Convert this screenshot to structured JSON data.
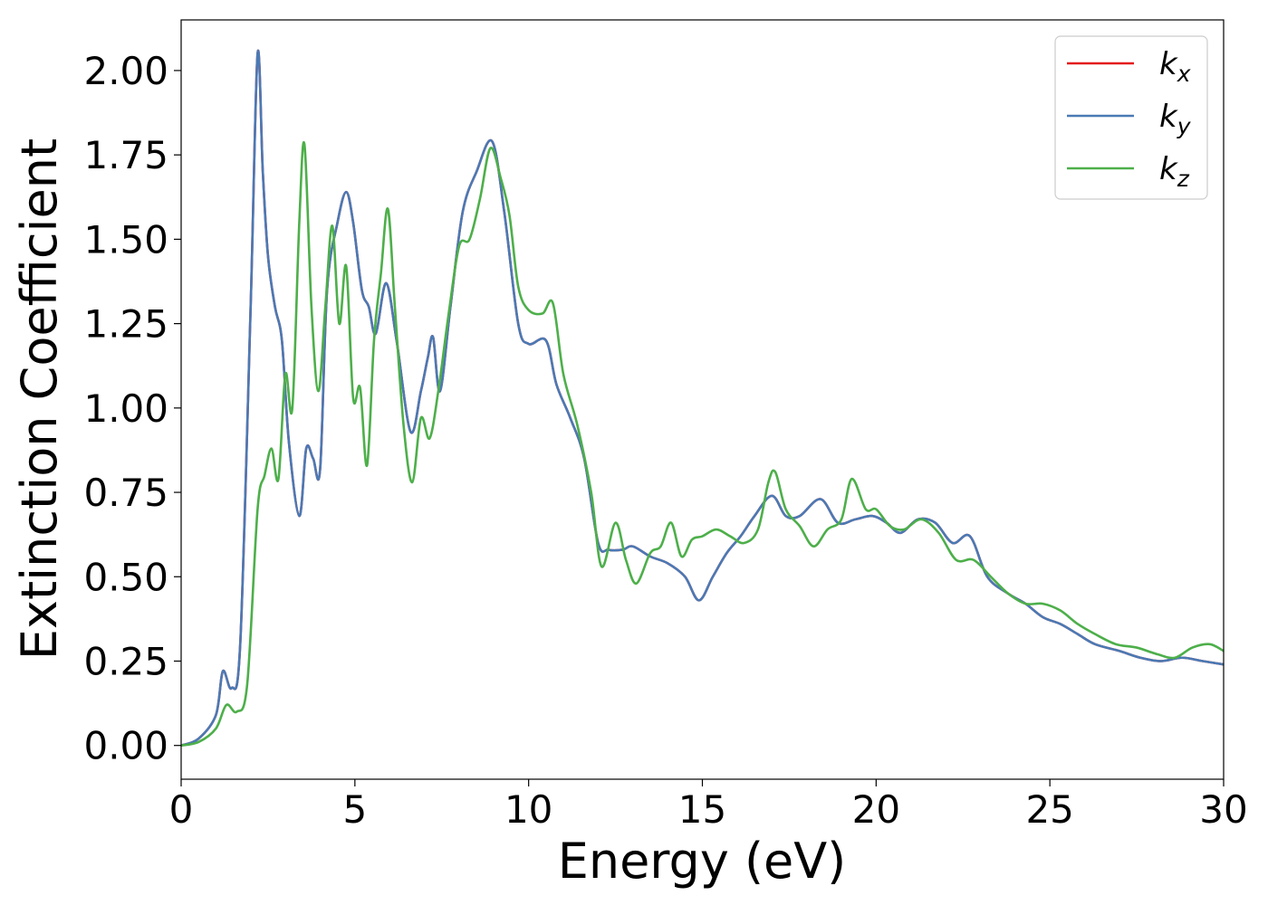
{
  "chart_data": {
    "type": "line",
    "title": "",
    "xlabel": "Energy (eV)",
    "ylabel": "Extinction Coefficient",
    "xlim": [
      0,
      30
    ],
    "ylim": [
      -0.1,
      2.15
    ],
    "xticks": [
      0,
      5,
      10,
      15,
      20,
      25,
      30
    ],
    "xtick_labels": [
      "0",
      "5",
      "10",
      "15",
      "20",
      "25",
      "30"
    ],
    "yticks": [
      0.0,
      0.25,
      0.5,
      0.75,
      1.0,
      1.25,
      1.5,
      1.75,
      2.0
    ],
    "ytick_labels": [
      "0.00",
      "0.25",
      "0.50",
      "0.75",
      "1.00",
      "1.25",
      "1.50",
      "1.75",
      "2.00"
    ],
    "grid": false,
    "legend_position": "top-right",
    "series": [
      {
        "name": "k",
        "subscript": "x",
        "color": "#e41a1c",
        "x": [
          0,
          0.5,
          1.0,
          1.2,
          1.45,
          1.7,
          2.0,
          2.2,
          2.35,
          2.5,
          2.7,
          2.9,
          3.1,
          3.4,
          3.6,
          3.8,
          4.0,
          4.2,
          4.5,
          4.75,
          4.95,
          5.2,
          5.4,
          5.6,
          5.9,
          6.2,
          6.6,
          6.9,
          7.1,
          7.25,
          7.45,
          7.75,
          8.1,
          8.5,
          8.95,
          9.3,
          9.7,
          10.0,
          10.5,
          10.8,
          11.2,
          11.6,
          12.0,
          12.3,
          12.7,
          13.0,
          13.5,
          14.0,
          14.5,
          14.9,
          15.3,
          15.7,
          16.1,
          16.5,
          17.0,
          17.4,
          17.8,
          18.4,
          18.9,
          19.4,
          19.9,
          20.3,
          20.7,
          21.2,
          21.7,
          22.2,
          22.7,
          23.2,
          23.8,
          24.3,
          24.8,
          25.3,
          25.8,
          26.3,
          27.0,
          27.6,
          28.2,
          28.8,
          29.4,
          30.0
        ],
        "values": [
          0.0,
          0.02,
          0.09,
          0.22,
          0.17,
          0.3,
          1.3,
          2.05,
          1.7,
          1.45,
          1.3,
          1.2,
          0.9,
          0.68,
          0.88,
          0.85,
          0.82,
          1.35,
          1.55,
          1.64,
          1.55,
          1.35,
          1.3,
          1.22,
          1.37,
          1.2,
          0.93,
          1.05,
          1.15,
          1.21,
          1.05,
          1.3,
          1.58,
          1.7,
          1.79,
          1.58,
          1.25,
          1.19,
          1.2,
          1.07,
          0.97,
          0.85,
          0.6,
          0.58,
          0.58,
          0.59,
          0.56,
          0.54,
          0.5,
          0.43,
          0.5,
          0.57,
          0.62,
          0.68,
          0.74,
          0.68,
          0.68,
          0.73,
          0.66,
          0.67,
          0.68,
          0.66,
          0.63,
          0.67,
          0.66,
          0.6,
          0.62,
          0.5,
          0.45,
          0.42,
          0.38,
          0.36,
          0.33,
          0.3,
          0.28,
          0.26,
          0.25,
          0.26,
          0.25,
          0.24
        ]
      },
      {
        "name": "k",
        "subscript": "y",
        "color": "#4a7ab5",
        "x": [
          0,
          0.5,
          1.0,
          1.2,
          1.45,
          1.7,
          2.0,
          2.2,
          2.35,
          2.5,
          2.7,
          2.9,
          3.1,
          3.4,
          3.6,
          3.8,
          4.0,
          4.2,
          4.5,
          4.75,
          4.95,
          5.2,
          5.4,
          5.6,
          5.9,
          6.2,
          6.6,
          6.9,
          7.1,
          7.25,
          7.45,
          7.75,
          8.1,
          8.5,
          8.95,
          9.3,
          9.7,
          10.0,
          10.5,
          10.8,
          11.2,
          11.6,
          12.0,
          12.3,
          12.7,
          13.0,
          13.5,
          14.0,
          14.5,
          14.9,
          15.3,
          15.7,
          16.1,
          16.5,
          17.0,
          17.4,
          17.8,
          18.4,
          18.9,
          19.4,
          19.9,
          20.3,
          20.7,
          21.2,
          21.7,
          22.2,
          22.7,
          23.2,
          23.8,
          24.3,
          24.8,
          25.3,
          25.8,
          26.3,
          27.0,
          27.6,
          28.2,
          28.8,
          29.4,
          30.0
        ],
        "values": [
          0.0,
          0.02,
          0.09,
          0.22,
          0.17,
          0.3,
          1.3,
          2.05,
          1.7,
          1.45,
          1.3,
          1.2,
          0.9,
          0.68,
          0.88,
          0.85,
          0.82,
          1.35,
          1.55,
          1.64,
          1.55,
          1.35,
          1.3,
          1.22,
          1.37,
          1.2,
          0.93,
          1.05,
          1.15,
          1.21,
          1.05,
          1.3,
          1.58,
          1.7,
          1.79,
          1.58,
          1.25,
          1.19,
          1.2,
          1.07,
          0.97,
          0.85,
          0.6,
          0.58,
          0.58,
          0.59,
          0.56,
          0.54,
          0.5,
          0.43,
          0.5,
          0.57,
          0.62,
          0.68,
          0.74,
          0.68,
          0.68,
          0.73,
          0.66,
          0.67,
          0.68,
          0.66,
          0.63,
          0.67,
          0.66,
          0.6,
          0.62,
          0.5,
          0.45,
          0.42,
          0.38,
          0.36,
          0.33,
          0.3,
          0.28,
          0.26,
          0.25,
          0.26,
          0.25,
          0.24
        ]
      },
      {
        "name": "k",
        "subscript": "z",
        "color": "#4daf4a",
        "x": [
          0,
          0.5,
          1.0,
          1.3,
          1.6,
          1.9,
          2.2,
          2.4,
          2.6,
          2.8,
          3.0,
          3.2,
          3.4,
          3.55,
          3.75,
          3.95,
          4.15,
          4.35,
          4.55,
          4.75,
          4.95,
          5.15,
          5.35,
          5.55,
          5.75,
          5.95,
          6.15,
          6.4,
          6.65,
          6.9,
          7.15,
          7.4,
          7.7,
          8.0,
          8.3,
          8.6,
          8.9,
          9.2,
          9.45,
          9.7,
          10.0,
          10.4,
          10.7,
          11.0,
          11.4,
          11.8,
          12.1,
          12.5,
          12.8,
          13.1,
          13.5,
          13.8,
          14.1,
          14.4,
          14.7,
          15.0,
          15.4,
          15.8,
          16.2,
          16.6,
          16.9,
          17.1,
          17.4,
          17.8,
          18.2,
          18.6,
          19.0,
          19.3,
          19.7,
          20.0,
          20.4,
          20.8,
          21.3,
          21.8,
          22.3,
          22.8,
          23.3,
          23.8,
          24.3,
          24.8,
          25.3,
          25.8,
          26.3,
          26.9,
          27.5,
          28.1,
          28.6,
          29.1,
          29.6,
          30.0
        ],
        "values": [
          0.0,
          0.01,
          0.05,
          0.12,
          0.1,
          0.18,
          0.7,
          0.8,
          0.88,
          0.79,
          1.1,
          1.0,
          1.55,
          1.78,
          1.3,
          1.05,
          1.3,
          1.54,
          1.25,
          1.42,
          1.03,
          1.06,
          0.83,
          1.2,
          1.4,
          1.59,
          1.3,
          0.95,
          0.78,
          0.97,
          0.91,
          1.05,
          1.28,
          1.48,
          1.5,
          1.62,
          1.77,
          1.68,
          1.57,
          1.36,
          1.29,
          1.28,
          1.31,
          1.1,
          0.95,
          0.75,
          0.53,
          0.66,
          0.55,
          0.48,
          0.57,
          0.59,
          0.66,
          0.56,
          0.61,
          0.62,
          0.64,
          0.62,
          0.6,
          0.64,
          0.78,
          0.81,
          0.7,
          0.65,
          0.59,
          0.64,
          0.67,
          0.79,
          0.7,
          0.7,
          0.65,
          0.64,
          0.67,
          0.63,
          0.55,
          0.55,
          0.5,
          0.45,
          0.42,
          0.42,
          0.4,
          0.36,
          0.33,
          0.3,
          0.29,
          0.27,
          0.26,
          0.29,
          0.3,
          0.28
        ]
      }
    ]
  }
}
